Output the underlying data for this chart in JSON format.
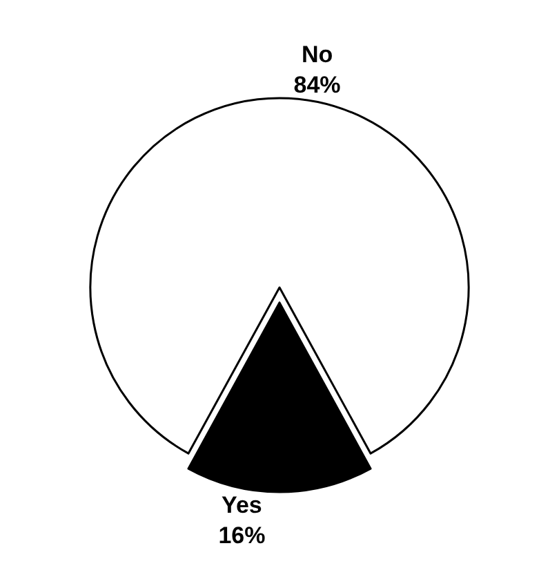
{
  "chart_data": {
    "type": "pie",
    "categories": [
      "No",
      "Yes"
    ],
    "values": [
      84,
      16
    ],
    "value_labels": [
      "84%",
      "16%"
    ],
    "colors": [
      "#ffffff",
      "#000000"
    ],
    "legend": false
  }
}
